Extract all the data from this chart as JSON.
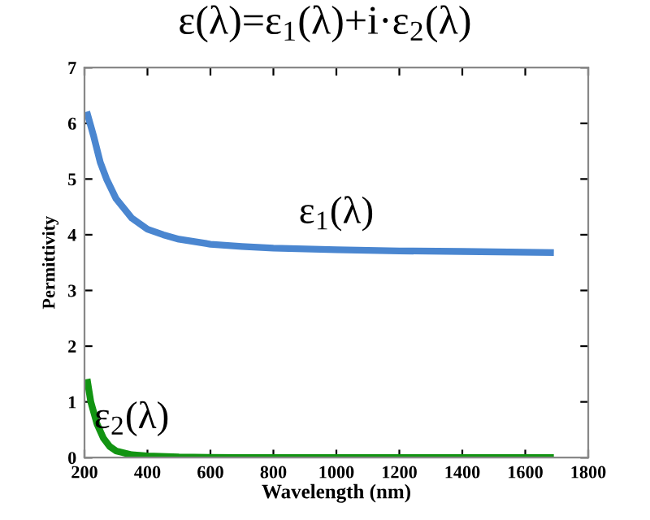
{
  "chart_data": {
    "type": "line",
    "title": "ε(λ)=ε$_{1}$(λ)+i·ε$_{2}$(λ)",
    "xlabel": "Wavelength (nm)",
    "ylabel": "Permittivity",
    "x": [
      210,
      230,
      250,
      270,
      300,
      350,
      400,
      450,
      500,
      600,
      700,
      800,
      1000,
      1200,
      1400,
      1680
    ],
    "series": [
      {
        "name": "ε$_{1}$(λ)",
        "color": "#4a86d0",
        "values": [
          6.15,
          5.75,
          5.3,
          5.0,
          4.65,
          4.3,
          4.1,
          4.0,
          3.92,
          3.83,
          3.79,
          3.76,
          3.73,
          3.71,
          3.7,
          3.68
        ]
      },
      {
        "name": "ε$_{2}$(λ)",
        "color": "#129412",
        "x": [
          210,
          220,
          240,
          260,
          280,
          300,
          350,
          400,
          500,
          700,
          1000,
          1680
        ],
        "values": [
          1.35,
          1.0,
          0.6,
          0.35,
          0.2,
          0.12,
          0.05,
          0.03,
          0.01,
          0,
          0,
          0
        ]
      }
    ],
    "xlim": [
      200,
      1800
    ],
    "xticks": [
      200,
      400,
      600,
      800,
      1000,
      1200,
      1400,
      1600,
      1800
    ],
    "ylim": [
      0,
      7
    ],
    "yticks": [
      0,
      1,
      2,
      3,
      4,
      5,
      6,
      7
    ],
    "grid": false,
    "legend": false,
    "marker": "none",
    "line_style": "solid"
  }
}
